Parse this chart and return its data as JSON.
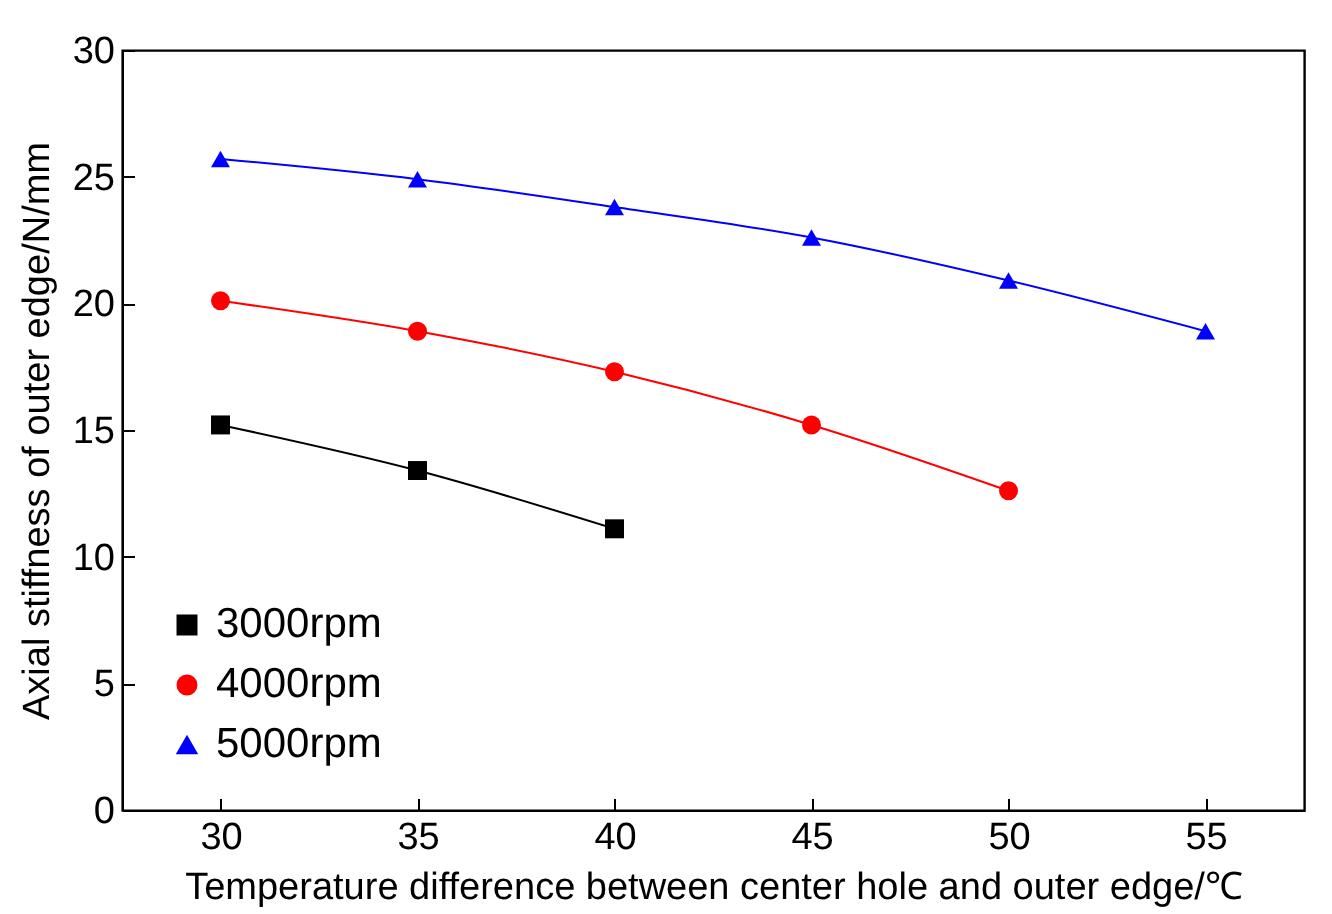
{
  "chart_data": {
    "type": "line",
    "xlabel": "Temperature difference between center hole and outer edge/℃",
    "ylabel": "Axial stiffness of outer edge/N/mm",
    "x": [
      30,
      35,
      40,
      45,
      50,
      55
    ],
    "series": [
      {
        "name": "3000rpm",
        "color": "#000000",
        "marker": "square",
        "values": [
          15.2,
          13.4,
          11.1,
          null,
          null,
          null
        ]
      },
      {
        "name": "4000rpm",
        "color": "#ff0000",
        "marker": "circle",
        "values": [
          20.1,
          18.9,
          17.3,
          15.2,
          12.6,
          null
        ]
      },
      {
        "name": "5000rpm",
        "color": "#0000ff",
        "marker": "triangle",
        "values": [
          25.7,
          24.9,
          23.8,
          22.6,
          20.9,
          18.9
        ]
      }
    ],
    "xlim": [
      27.5,
      57.5
    ],
    "xticks": [
      30,
      35,
      40,
      45,
      50,
      55
    ],
    "ylim": [
      0,
      30
    ],
    "yticks": [
      0,
      5,
      10,
      15,
      20,
      25,
      30
    ],
    "grid": false,
    "legend": "bottom left",
    "line_style": "solid"
  }
}
